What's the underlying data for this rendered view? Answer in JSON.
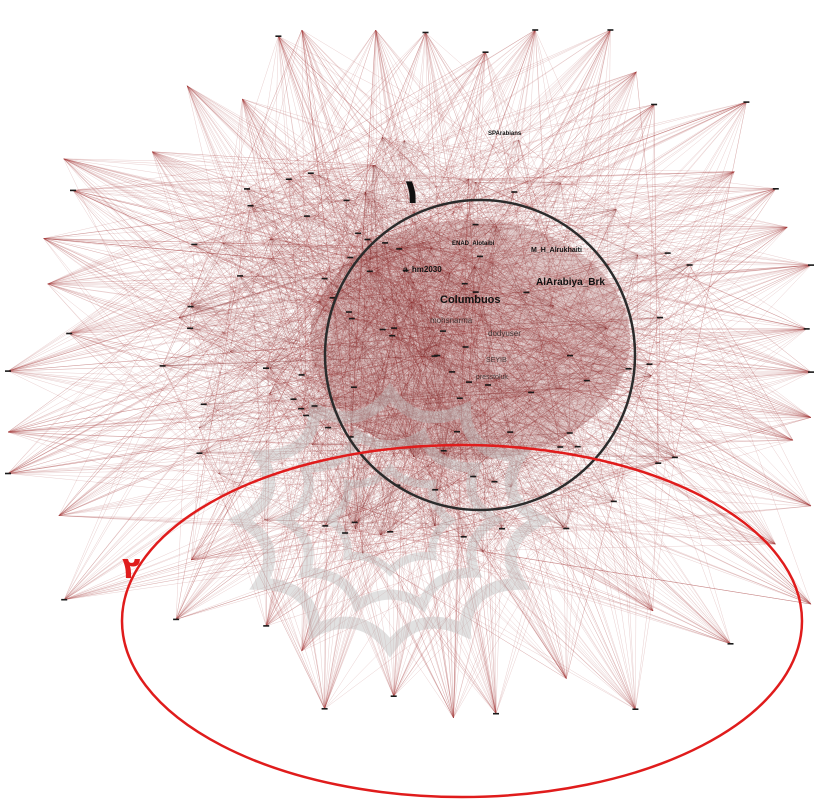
{
  "colors": {
    "edge": "#a33a3a",
    "edge_dense": "#7a1f1f",
    "node": "#1a1a1a",
    "cluster_circle": "#2b2b2b",
    "periphery_ellipse": "#e01c1c",
    "marker_1": "#111111",
    "marker_2": "#e01c1c",
    "watermark": "#bdbdbd"
  },
  "markers": {
    "core": "١",
    "periphery": "٢"
  },
  "labels": {
    "top": "SPArabians",
    "enad": "ENAD_Alotaibi",
    "alrukhaiti": "M_H_Alrukhaiti",
    "bmhm": "a_hm2030",
    "arabiya": "AlArabiya_Brk",
    "columbuos": "Columbuos",
    "mohsnarm": "mohsnarma",
    "dodyuser": "dodyuser",
    "mustafa": "SEYIB",
    "presstoluk": "presstoluk"
  },
  "icons": {
    "watermark": "university-seal-watermark"
  }
}
